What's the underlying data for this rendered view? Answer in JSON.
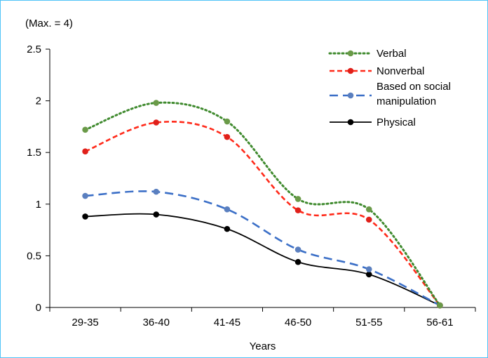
{
  "chart_data": {
    "type": "line",
    "note": "(Max. = 4)",
    "xlabel": "Years",
    "ylabel": "",
    "categories": [
      "29-35",
      "36-40",
      "41-45",
      "46-50",
      "51-55",
      "56-61"
    ],
    "ylim": [
      0,
      2.5
    ],
    "yticks": [
      "0",
      "0.5",
      "1",
      "1.5",
      "2",
      "2.5"
    ],
    "grid": false,
    "legend_position": "top-right",
    "series": [
      {
        "name": "Verbal",
        "values": [
          1.72,
          1.98,
          1.8,
          1.05,
          0.95,
          0.02
        ],
        "color": "#3f8a2e",
        "marker_color": "#6a9a48",
        "dash": "dotted"
      },
      {
        "name": "Nonverbal",
        "values": [
          1.51,
          1.79,
          1.65,
          0.94,
          0.85,
          0.02
        ],
        "color": "#ff2a1a",
        "marker_color": "#e0201a",
        "dash": "dashed"
      },
      {
        "name": "Based on social\nmanipulation",
        "values": [
          1.08,
          1.12,
          0.95,
          0.56,
          0.37,
          0.02
        ],
        "color": "#3b6fc7",
        "marker_color": "#5a7fbf",
        "dash": "longdash"
      },
      {
        "name": "Physical",
        "values": [
          0.88,
          0.9,
          0.76,
          0.44,
          0.32,
          0.02
        ],
        "color": "#000000",
        "marker_color": "#000000",
        "dash": "solid"
      }
    ]
  }
}
